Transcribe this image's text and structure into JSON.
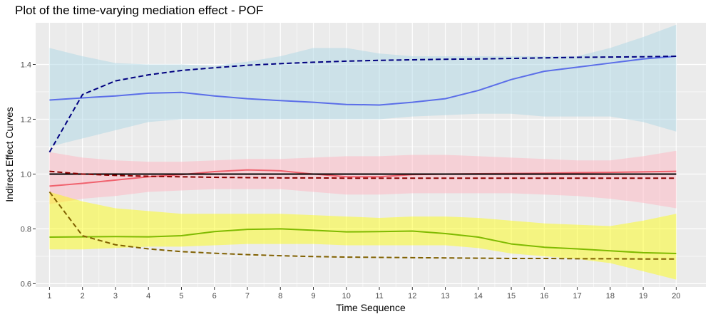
{
  "chart_data": {
    "type": "line",
    "title": "Plot of the time-varying mediation effect - POF",
    "xlabel": "Time Sequence",
    "ylabel": "Indirect Effect Curves",
    "x": [
      1,
      2,
      3,
      4,
      5,
      6,
      7,
      8,
      9,
      10,
      11,
      12,
      13,
      14,
      15,
      16,
      17,
      18,
      19,
      20
    ],
    "xlim": [
      0.58,
      20.9
    ],
    "ylim": [
      0.588,
      1.552
    ],
    "yticks": [
      0.6,
      0.8,
      1.0,
      1.2,
      1.4
    ],
    "ytick_labels": [
      "0.6",
      "0.8",
      "1.0",
      "1.2",
      "1.4"
    ],
    "xtick_labels": [
      "1",
      "2",
      "3",
      "4",
      "5",
      "6",
      "7",
      "8",
      "9",
      "10",
      "11",
      "12",
      "13",
      "14",
      "15",
      "16",
      "17",
      "18",
      "19",
      "20"
    ],
    "grid": true,
    "legend": "none",
    "bands": [
      {
        "color": "#add8e6",
        "opacity": 0.5,
        "upper": [
          1.46,
          1.43,
          1.405,
          1.4,
          1.4,
          1.395,
          1.41,
          1.43,
          1.46,
          1.46,
          1.44,
          1.43,
          1.43,
          1.43,
          1.43,
          1.43,
          1.43,
          1.46,
          1.5,
          1.545
        ],
        "lower": [
          1.1,
          1.13,
          1.16,
          1.19,
          1.2,
          1.2,
          1.2,
          1.2,
          1.2,
          1.2,
          1.2,
          1.21,
          1.215,
          1.22,
          1.22,
          1.21,
          1.21,
          1.21,
          1.19,
          1.155
        ]
      },
      {
        "color": "#ffb6c1",
        "opacity": 0.5,
        "upper": [
          1.08,
          1.06,
          1.05,
          1.045,
          1.045,
          1.05,
          1.055,
          1.055,
          1.06,
          1.065,
          1.065,
          1.07,
          1.07,
          1.065,
          1.06,
          1.055,
          1.05,
          1.05,
          1.065,
          1.085
        ],
        "lower": [
          0.89,
          0.91,
          0.92,
          0.935,
          0.94,
          0.945,
          0.945,
          0.945,
          0.935,
          0.925,
          0.925,
          0.93,
          0.93,
          0.93,
          0.93,
          0.925,
          0.92,
          0.91,
          0.895,
          0.875
        ]
      },
      {
        "color": "#ffff00",
        "opacity": 0.45,
        "upper": [
          0.935,
          0.9,
          0.875,
          0.865,
          0.855,
          0.855,
          0.855,
          0.855,
          0.85,
          0.845,
          0.84,
          0.845,
          0.845,
          0.84,
          0.83,
          0.82,
          0.815,
          0.81,
          0.83,
          0.855
        ],
        "lower": [
          0.725,
          0.725,
          0.73,
          0.735,
          0.735,
          0.74,
          0.745,
          0.745,
          0.745,
          0.74,
          0.74,
          0.74,
          0.74,
          0.73,
          0.71,
          0.7,
          0.69,
          0.675,
          0.645,
          0.615
        ]
      }
    ],
    "series": [
      {
        "color": "#5b6ee8",
        "dashed": false,
        "values": [
          1.27,
          1.278,
          1.285,
          1.295,
          1.298,
          1.285,
          1.275,
          1.268,
          1.262,
          1.254,
          1.252,
          1.262,
          1.275,
          1.305,
          1.345,
          1.375,
          1.39,
          1.405,
          1.42,
          1.43
        ]
      },
      {
        "color": "#000080",
        "dashed": true,
        "values": [
          1.08,
          1.29,
          1.34,
          1.362,
          1.378,
          1.388,
          1.397,
          1.403,
          1.408,
          1.412,
          1.415,
          1.417,
          1.419,
          1.42,
          1.422,
          1.424,
          1.426,
          1.427,
          1.428,
          1.43
        ]
      },
      {
        "color": "#f0626e",
        "dashed": false,
        "values": [
          0.956,
          0.966,
          0.978,
          0.99,
          0.998,
          1.009,
          1.015,
          1.012,
          1.0,
          0.99,
          0.99,
          0.998,
          1.0,
          1.001,
          1.002,
          1.003,
          1.005,
          1.006,
          1.008,
          1.01
        ]
      },
      {
        "color": "#000000",
        "dashed": false,
        "values": [
          1.0,
          1.0,
          1.0,
          1.0,
          1.0,
          1.0,
          1.0,
          1.0,
          1.0,
          1.0,
          1.0,
          1.0,
          1.0,
          1.0,
          1.0,
          1.0,
          1.0,
          1.0,
          1.0,
          1.0
        ]
      },
      {
        "color": "#8b0000",
        "dashed": true,
        "values": [
          1.01,
          1.0,
          0.995,
          0.992,
          0.99,
          0.988,
          0.987,
          0.986,
          0.986,
          0.985,
          0.985,
          0.985,
          0.985,
          0.985,
          0.985,
          0.985,
          0.985,
          0.985,
          0.985,
          0.985
        ]
      },
      {
        "color": "#7fba00",
        "dashed": false,
        "values": [
          0.77,
          0.771,
          0.772,
          0.771,
          0.775,
          0.79,
          0.798,
          0.8,
          0.795,
          0.789,
          0.79,
          0.792,
          0.783,
          0.77,
          0.745,
          0.733,
          0.727,
          0.72,
          0.713,
          0.71
        ]
      },
      {
        "color": "#806000",
        "dashed": true,
        "values": [
          0.935,
          0.775,
          0.742,
          0.727,
          0.717,
          0.711,
          0.706,
          0.702,
          0.699,
          0.697,
          0.696,
          0.695,
          0.694,
          0.693,
          0.692,
          0.692,
          0.691,
          0.691,
          0.69,
          0.69
        ]
      }
    ]
  }
}
